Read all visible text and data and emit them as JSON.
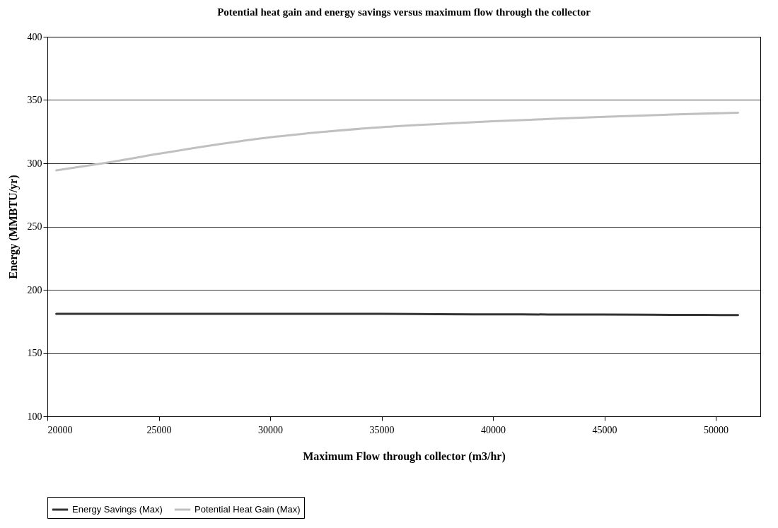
{
  "chart_data": {
    "type": "line",
    "title": "Potential heat gain and energy savings versus maximum flow through the collector",
    "xlabel": "Maximum Flow through collector (m3/hr)",
    "ylabel": "Energy (MMBTU/yr)",
    "x": [
      20400,
      22500,
      25000,
      27500,
      30000,
      32500,
      35000,
      37500,
      40000,
      42500,
      45000,
      48000,
      51000
    ],
    "series": [
      {
        "name": "Energy Savings (Max)",
        "color": "#333333",
        "values": [
          181,
          181,
          181,
          181,
          181,
          181,
          181,
          180.7,
          180.6,
          180.5,
          180.4,
          180.2,
          180
        ]
      },
      {
        "name": "Potential Heat Gain (Max)",
        "color": "#c0c0c0",
        "values": [
          294.4,
          300,
          307.5,
          314.5,
          320.5,
          325,
          328.5,
          331,
          333.2,
          335,
          336.8,
          338.5,
          340
        ]
      }
    ],
    "xlim": [
      20000,
      52000
    ],
    "xticks": [
      20000,
      25000,
      30000,
      35000,
      40000,
      45000,
      50000
    ],
    "ylim": [
      100,
      400
    ],
    "yticks": [
      100,
      150,
      200,
      250,
      300,
      350,
      400
    ],
    "grid": "y",
    "legend": "bottom",
    "marker": "none",
    "line_style": "solid"
  }
}
